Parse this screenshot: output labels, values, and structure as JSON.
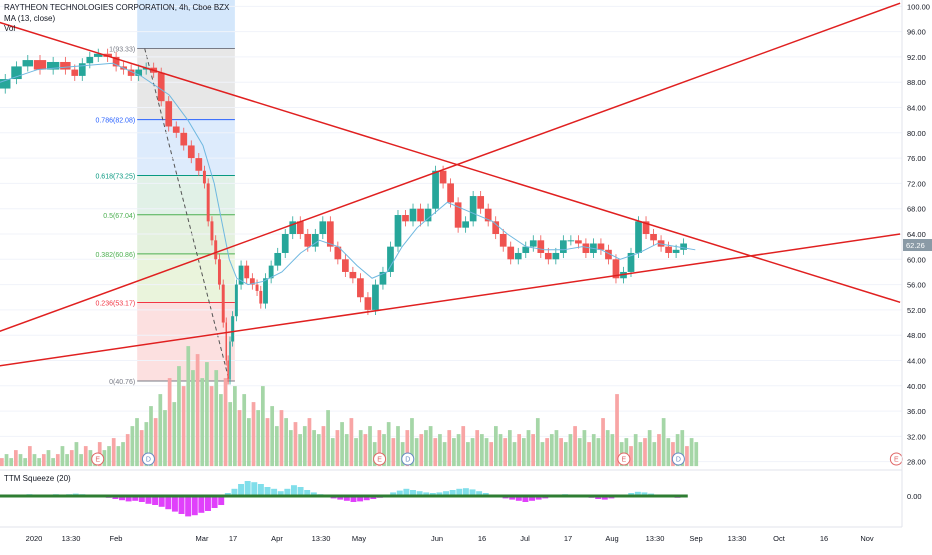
{
  "legend": {
    "title": "RAYTHEON TECHNOLOGIES CORPORATION, 4h, Cboe BZX",
    "ma": "MA (13, close)",
    "vol": "Vol"
  },
  "indicator": {
    "title": "TTM Squeeze (20)",
    "value_label": "0.00"
  },
  "colors": {
    "up": "#26a69a",
    "down": "#ef5350",
    "trendline": "#e02020",
    "ma": "#6fb8e0",
    "price_badge": "#8a9aa6",
    "fib_786": "#2962ff",
    "fib_618": "#089981",
    "fib_500": "#4caf50",
    "fib_382": "#4caf50",
    "fib_236": "#f23645",
    "fib_0": "#787b86",
    "squeeze_up": "#80deea",
    "squeeze_down": "#e040fb"
  },
  "chart_data": {
    "type": "candlestick",
    "instrument": "RAYTHEON TECHNOLOGIES CORPORATION",
    "interval": "4h",
    "exchange": "Cboe BZX",
    "y_ticks": [
      "100.00",
      "96.00",
      "92.00",
      "88.00",
      "84.00",
      "80.00",
      "76.00",
      "72.00",
      "68.00",
      "64.00",
      "60.00",
      "56.00",
      "52.00",
      "48.00",
      "44.00",
      "40.00",
      "36.00",
      "32.00",
      "28.00"
    ],
    "y_range": [
      27,
      101
    ],
    "current_price": "62.26",
    "x_ticks": [
      "2020",
      "13:30",
      "Feb",
      "Mar",
      "17",
      "Apr",
      "13:30",
      "May",
      "Jun",
      "16",
      "Jul",
      "17",
      "Aug",
      "13:30",
      "Sep",
      "13:30",
      "Oct",
      "16",
      "Nov"
    ],
    "fibonacci": [
      {
        "label": "1(93.33)",
        "value": 93.33
      },
      {
        "label": "0.786(82.08)",
        "value": 82.08
      },
      {
        "label": "0.618(73.25)",
        "value": 73.25
      },
      {
        "label": "0.5(67.04)",
        "value": 67.04
      },
      {
        "label": "0.382(60.86)",
        "value": 60.86
      },
      {
        "label": "0.236(53.17)",
        "value": 53.17
      },
      {
        "label": "0(40.76)",
        "value": 40.76
      }
    ],
    "price_path": [
      [
        0,
        87
      ],
      [
        6,
        88.5
      ],
      [
        12,
        90.5
      ],
      [
        18,
        91.5
      ],
      [
        25,
        90
      ],
      [
        32,
        91.2
      ],
      [
        38,
        90
      ],
      [
        42,
        89
      ],
      [
        46,
        91
      ],
      [
        50,
        92
      ],
      [
        55,
        92.5
      ],
      [
        60,
        92
      ],
      [
        64,
        90.5
      ],
      [
        68,
        90
      ],
      [
        72,
        89
      ],
      [
        76,
        90
      ],
      [
        80,
        90.3
      ],
      [
        84,
        89.5
      ],
      [
        88,
        85
      ],
      [
        92,
        81
      ],
      [
        96,
        80
      ],
      [
        100,
        78
      ],
      [
        104,
        76
      ],
      [
        108,
        74
      ],
      [
        110,
        72
      ],
      [
        112,
        66
      ],
      [
        114,
        63
      ],
      [
        116,
        60
      ],
      [
        118,
        56
      ],
      [
        120,
        50
      ],
      [
        121,
        44
      ],
      [
        122,
        41
      ],
      [
        123,
        47
      ],
      [
        125,
        51
      ],
      [
        127,
        56
      ],
      [
        130,
        59
      ],
      [
        133,
        57
      ],
      [
        136,
        56
      ],
      [
        138,
        55
      ],
      [
        140,
        53
      ],
      [
        143,
        57
      ],
      [
        146,
        59
      ],
      [
        150,
        61
      ],
      [
        154,
        64
      ],
      [
        158,
        66
      ],
      [
        162,
        64
      ],
      [
        166,
        62
      ],
      [
        170,
        64
      ],
      [
        174,
        66
      ],
      [
        178,
        62
      ],
      [
        182,
        60
      ],
      [
        186,
        58
      ],
      [
        190,
        57
      ],
      [
        194,
        54
      ],
      [
        198,
        52
      ],
      [
        202,
        56
      ],
      [
        206,
        58
      ],
      [
        210,
        62
      ],
      [
        214,
        67
      ],
      [
        218,
        66
      ],
      [
        222,
        68
      ],
      [
        226,
        66
      ],
      [
        230,
        68
      ],
      [
        234,
        74
      ],
      [
        238,
        72
      ],
      [
        242,
        69
      ],
      [
        246,
        65
      ],
      [
        250,
        66
      ],
      [
        254,
        70
      ],
      [
        258,
        68
      ],
      [
        262,
        66
      ],
      [
        266,
        64
      ],
      [
        270,
        62
      ],
      [
        274,
        60
      ],
      [
        278,
        61
      ],
      [
        282,
        62
      ],
      [
        286,
        63
      ],
      [
        290,
        61
      ],
      [
        294,
        60
      ],
      [
        298,
        61
      ],
      [
        302,
        63
      ],
      [
        306,
        63
      ],
      [
        310,
        62.5
      ],
      [
        314,
        61
      ],
      [
        318,
        62.5
      ],
      [
        322,
        61.5
      ],
      [
        326,
        60
      ],
      [
        330,
        57
      ],
      [
        334,
        58
      ],
      [
        338,
        61
      ],
      [
        342,
        66
      ],
      [
        346,
        64
      ],
      [
        350,
        63
      ],
      [
        354,
        62
      ],
      [
        358,
        61
      ],
      [
        362,
        61.5
      ],
      [
        366,
        62.5
      ]
    ],
    "ma_path": [
      [
        0,
        88
      ],
      [
        20,
        90
      ],
      [
        40,
        90.5
      ],
      [
        60,
        91
      ],
      [
        75,
        89
      ],
      [
        90,
        86
      ],
      [
        100,
        82
      ],
      [
        108,
        78
      ],
      [
        114,
        72
      ],
      [
        118,
        66
      ],
      [
        122,
        60
      ],
      [
        126,
        57
      ],
      [
        132,
        56
      ],
      [
        140,
        56.5
      ],
      [
        150,
        58
      ],
      [
        160,
        61
      ],
      [
        170,
        63
      ],
      [
        180,
        62
      ],
      [
        190,
        59
      ],
      [
        198,
        57
      ],
      [
        206,
        58
      ],
      [
        214,
        62
      ],
      [
        222,
        65
      ],
      [
        230,
        67
      ],
      [
        238,
        69
      ],
      [
        246,
        68
      ],
      [
        254,
        67
      ],
      [
        262,
        66
      ],
      [
        270,
        64
      ],
      [
        280,
        62
      ],
      [
        290,
        61.5
      ],
      [
        300,
        61.5
      ],
      [
        310,
        62
      ],
      [
        320,
        61.5
      ],
      [
        330,
        60
      ],
      [
        340,
        61
      ],
      [
        350,
        62.5
      ],
      [
        360,
        62
      ],
      [
        370,
        61.5
      ]
    ],
    "trendlines": [
      {
        "from": [
          -4,
          97.8
        ],
        "to": [
          479,
          53.2
        ]
      },
      {
        "from": [
          -4,
          48.2
        ],
        "to": [
          479,
          100.5
        ]
      },
      {
        "from": [
          -4,
          43.0
        ],
        "to": [
          479,
          64.0
        ]
      }
    ],
    "volume": [
      2,
      3,
      2,
      4,
      3,
      2,
      5,
      3,
      2,
      3,
      4,
      2,
      3,
      5,
      3,
      4,
      6,
      3,
      5,
      4,
      3,
      6,
      4,
      5,
      7,
      5,
      6,
      8,
      10,
      12,
      9,
      11,
      15,
      12,
      18,
      14,
      22,
      16,
      25,
      20,
      30,
      24,
      28,
      22,
      26,
      20,
      24,
      18,
      22,
      16,
      20,
      14,
      18,
      12,
      16,
      14,
      20,
      12,
      15,
      10,
      14,
      12,
      9,
      11,
      8,
      10,
      12,
      9,
      8,
      10,
      14,
      7,
      9,
      11,
      8,
      12,
      7,
      9,
      8,
      10,
      6,
      9,
      8,
      11,
      7,
      10,
      6,
      9,
      12,
      7,
      8,
      9,
      10,
      7,
      8,
      6,
      9,
      7,
      8,
      10,
      6,
      7,
      9,
      8,
      7,
      6,
      10,
      8,
      7,
      9,
      6,
      8,
      7,
      9,
      8,
      12,
      6,
      7,
      8,
      9,
      7,
      6,
      8,
      10,
      7,
      9,
      6,
      8,
      7,
      12,
      9,
      8,
      18,
      6,
      7,
      5,
      8,
      6,
      7,
      9,
      6,
      8,
      12,
      7,
      6,
      8,
      9,
      5,
      7,
      6
    ],
    "event_markers": [
      {
        "label": "E",
        "x": 52
      },
      {
        "label": "D",
        "x": 79
      },
      {
        "label": "E",
        "x": 202
      },
      {
        "label": "D",
        "x": 217
      },
      {
        "label": "E",
        "x": 332
      },
      {
        "label": "D",
        "x": 361
      },
      {
        "label": "E",
        "x": 477
      }
    ],
    "squeeze": [
      0.1,
      0.2,
      0.1,
      0.2,
      0.3,
      0.2,
      0.1,
      0.2,
      0.3,
      0.2,
      0.3,
      0.4,
      0.3,
      0.2,
      0.1,
      -0.1,
      -0.3,
      -0.5,
      -0.7,
      -0.9,
      -0.8,
      -1.0,
      -1.3,
      -1.5,
      -1.8,
      -2.2,
      -2.6,
      -3.0,
      -3.4,
      -3.2,
      -2.8,
      -2.5,
      -2.0,
      -1.5,
      0.5,
      1.2,
      2.0,
      2.5,
      2.3,
      2.0,
      1.5,
      1.2,
      0.8,
      1.2,
      1.8,
      1.5,
      1.0,
      0.6,
      0.3,
      -0.2,
      -0.4,
      -0.6,
      -0.8,
      -1.0,
      -0.9,
      -0.7,
      -0.5,
      -0.3,
      0.2,
      0.6,
      0.9,
      1.2,
      1.0,
      0.8,
      0.6,
      0.5,
      0.6,
      0.8,
      1.0,
      1.2,
      1.3,
      1.1,
      0.8,
      0.5,
      0.2,
      -0.2,
      -0.4,
      -0.6,
      -0.8,
      -1.0,
      -0.8,
      -0.6,
      -0.4,
      -0.2,
      0.2,
      0.3,
      0.2,
      0.1,
      -0.1,
      -0.3,
      -0.5,
      -0.6,
      -0.4,
      -0.2,
      0.2,
      0.5,
      0.7,
      0.6,
      0.4,
      0.2,
      0.1,
      -0.2,
      -0.3,
      -0.2
    ]
  }
}
